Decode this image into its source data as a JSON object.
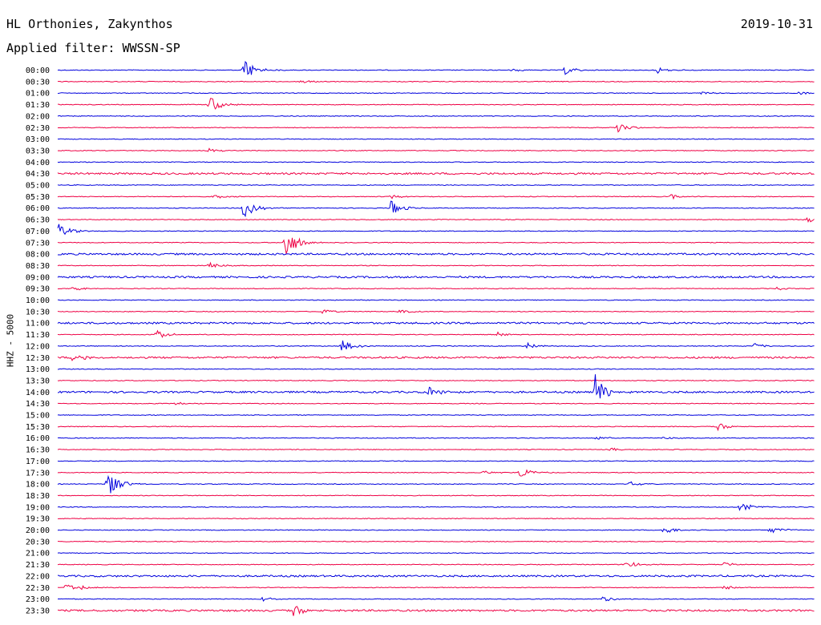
{
  "header": {
    "station": "HL Orthonies, Zakynthos",
    "date": "2019-10-31",
    "filter": "Applied filter: WWSSN-SP"
  },
  "chart_data": {
    "type": "line",
    "title": "HL Orthonies, Zakynthos",
    "ylabel": "HHZ - 5000",
    "rows": [
      "00:00",
      "00:30",
      "01:00",
      "01:30",
      "02:00",
      "02:30",
      "03:00",
      "03:30",
      "04:00",
      "04:30",
      "05:00",
      "05:30",
      "06:00",
      "06:30",
      "07:00",
      "07:30",
      "08:00",
      "08:30",
      "09:00",
      "09:30",
      "10:00",
      "10:30",
      "11:00",
      "11:30",
      "12:00",
      "12:30",
      "13:00",
      "13:30",
      "14:00",
      "14:30",
      "15:00",
      "15:30",
      "16:00",
      "16:30",
      "17:00",
      "17:30",
      "18:00",
      "18:30",
      "19:00",
      "19:30",
      "20:00",
      "20:30",
      "21:00",
      "21:30",
      "22:00",
      "22:30",
      "23:00",
      "23:30"
    ],
    "colors": [
      "#0000dd",
      "#ee0044"
    ],
    "events": [
      {
        "row": 0,
        "x": 0.245,
        "amp": 16
      },
      {
        "row": 0,
        "x": 0.67,
        "amp": 6
      },
      {
        "row": 0,
        "x": 0.79,
        "amp": 5
      },
      {
        "row": 0,
        "x": 0.6,
        "amp": 2
      },
      {
        "row": 1,
        "x": 0.32,
        "amp": 3
      },
      {
        "row": 2,
        "x": 0.85,
        "amp": 2
      },
      {
        "row": 2,
        "x": 0.98,
        "amp": 2
      },
      {
        "row": 3,
        "x": 0.2,
        "amp": 13
      },
      {
        "row": 5,
        "x": 0.74,
        "amp": 6
      },
      {
        "row": 7,
        "x": 0.2,
        "amp": 3
      },
      {
        "row": 11,
        "x": 0.205,
        "amp": 3
      },
      {
        "row": 11,
        "x": 0.44,
        "amp": 3
      },
      {
        "row": 11,
        "x": 0.81,
        "amp": 3
      },
      {
        "row": 12,
        "x": 0.245,
        "amp": 13
      },
      {
        "row": 12,
        "x": 0.44,
        "amp": 10
      },
      {
        "row": 13,
        "x": 0.99,
        "amp": 4
      },
      {
        "row": 14,
        "x": 0.0,
        "amp": 11
      },
      {
        "row": 15,
        "x": 0.3,
        "amp": 22
      },
      {
        "row": 17,
        "x": 0.2,
        "amp": 5
      },
      {
        "row": 19,
        "x": 0.02,
        "amp": 3
      },
      {
        "row": 19,
        "x": 0.95,
        "amp": 2
      },
      {
        "row": 21,
        "x": 0.35,
        "amp": 3
      },
      {
        "row": 21,
        "x": 0.45,
        "amp": 3
      },
      {
        "row": 23,
        "x": 0.13,
        "amp": 6
      },
      {
        "row": 23,
        "x": 0.58,
        "amp": 3
      },
      {
        "row": 24,
        "x": 0.375,
        "amp": 9
      },
      {
        "row": 24,
        "x": 0.62,
        "amp": 5
      },
      {
        "row": 24,
        "x": 0.92,
        "amp": 4
      },
      {
        "row": 25,
        "x": 0.02,
        "amp": 7
      },
      {
        "row": 28,
        "x": 0.49,
        "amp": 8
      },
      {
        "row": 28,
        "x": 0.71,
        "amp": 22
      },
      {
        "row": 29,
        "x": 0.155,
        "amp": 2
      },
      {
        "row": 31,
        "x": 0.87,
        "amp": 6
      },
      {
        "row": 32,
        "x": 0.71,
        "amp": 3
      },
      {
        "row": 32,
        "x": 0.8,
        "amp": 2
      },
      {
        "row": 33,
        "x": 0.73,
        "amp": 2
      },
      {
        "row": 35,
        "x": 0.56,
        "amp": 3
      },
      {
        "row": 35,
        "x": 0.61,
        "amp": 8
      },
      {
        "row": 36,
        "x": 0.065,
        "amp": 19
      },
      {
        "row": 36,
        "x": 0.755,
        "amp": 3
      },
      {
        "row": 38,
        "x": 0.9,
        "amp": 7
      },
      {
        "row": 40,
        "x": 0.8,
        "amp": 6
      },
      {
        "row": 40,
        "x": 0.94,
        "amp": 6
      },
      {
        "row": 43,
        "x": 0.75,
        "amp": 5
      },
      {
        "row": 43,
        "x": 0.88,
        "amp": 3
      },
      {
        "row": 45,
        "x": 0.01,
        "amp": 4
      },
      {
        "row": 45,
        "x": 0.03,
        "amp": 4
      },
      {
        "row": 45,
        "x": 0.88,
        "amp": 3
      },
      {
        "row": 46,
        "x": 0.27,
        "amp": 3
      },
      {
        "row": 46,
        "x": 0.72,
        "amp": 4
      },
      {
        "row": 47,
        "x": 0.31,
        "amp": 9
      }
    ],
    "noisy_rows": [
      9,
      16,
      18,
      22,
      25,
      28,
      44,
      47
    ],
    "grid": false
  }
}
